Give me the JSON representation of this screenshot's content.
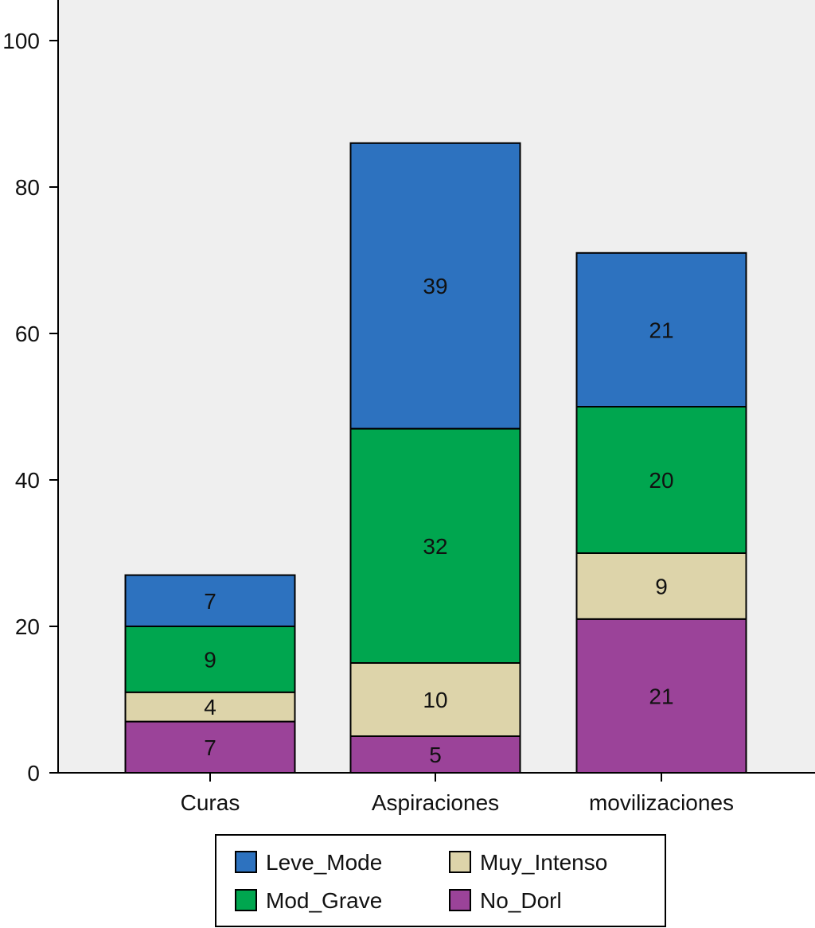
{
  "chart_data": {
    "type": "bar",
    "stacked": true,
    "categories": [
      "Curas",
      "Aspiraciones",
      "movilizaciones"
    ],
    "series": [
      {
        "name": "No_Dorl",
        "color": "#9b4399",
        "values": [
          7,
          5,
          21
        ]
      },
      {
        "name": "Muy_Intenso",
        "color": "#ddd4aa",
        "values": [
          4,
          10,
          9
        ]
      },
      {
        "name": "Mod_Grave",
        "color": "#00a64f",
        "values": [
          9,
          32,
          20
        ]
      },
      {
        "name": "Leve_Mode",
        "color": "#2d72bf",
        "values": [
          7,
          39,
          21
        ]
      }
    ],
    "legend_order": [
      "Leve_Mode",
      "Muy_Intenso",
      "Mod_Grave",
      "No_Dorl"
    ],
    "ylim": [
      0,
      100
    ],
    "yticks": [
      0,
      20,
      40,
      60,
      80,
      100
    ],
    "xlabel": "",
    "ylabel": "",
    "title": "",
    "grid": false,
    "legend_position": "bottom",
    "plot_background": "#efefef"
  }
}
